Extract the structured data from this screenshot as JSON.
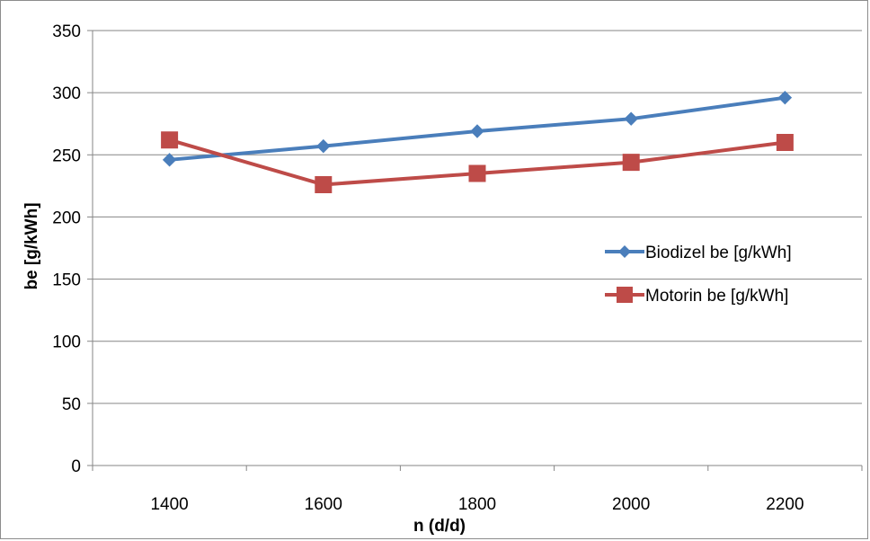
{
  "chart_data": {
    "type": "line",
    "title": "",
    "xlabel": "n (d/d)",
    "ylabel": "be [g/kWh]",
    "categories": [
      "1400",
      "1600",
      "1800",
      "2000",
      "2200"
    ],
    "ylim": [
      0,
      350
    ],
    "yticks": [
      0,
      50,
      100,
      150,
      200,
      250,
      300,
      350
    ],
    "grid": "horizontal",
    "legend_position": "right",
    "series": [
      {
        "name": "Biodizel be [g/kWh]",
        "values": [
          246,
          257,
          269,
          279,
          296
        ],
        "color": "#4a7ebb",
        "marker": "diamond"
      },
      {
        "name": "Motorin be [g/kWh]",
        "values": [
          262,
          226,
          235,
          244,
          260
        ],
        "color": "#be4b48",
        "marker": "square"
      }
    ]
  }
}
